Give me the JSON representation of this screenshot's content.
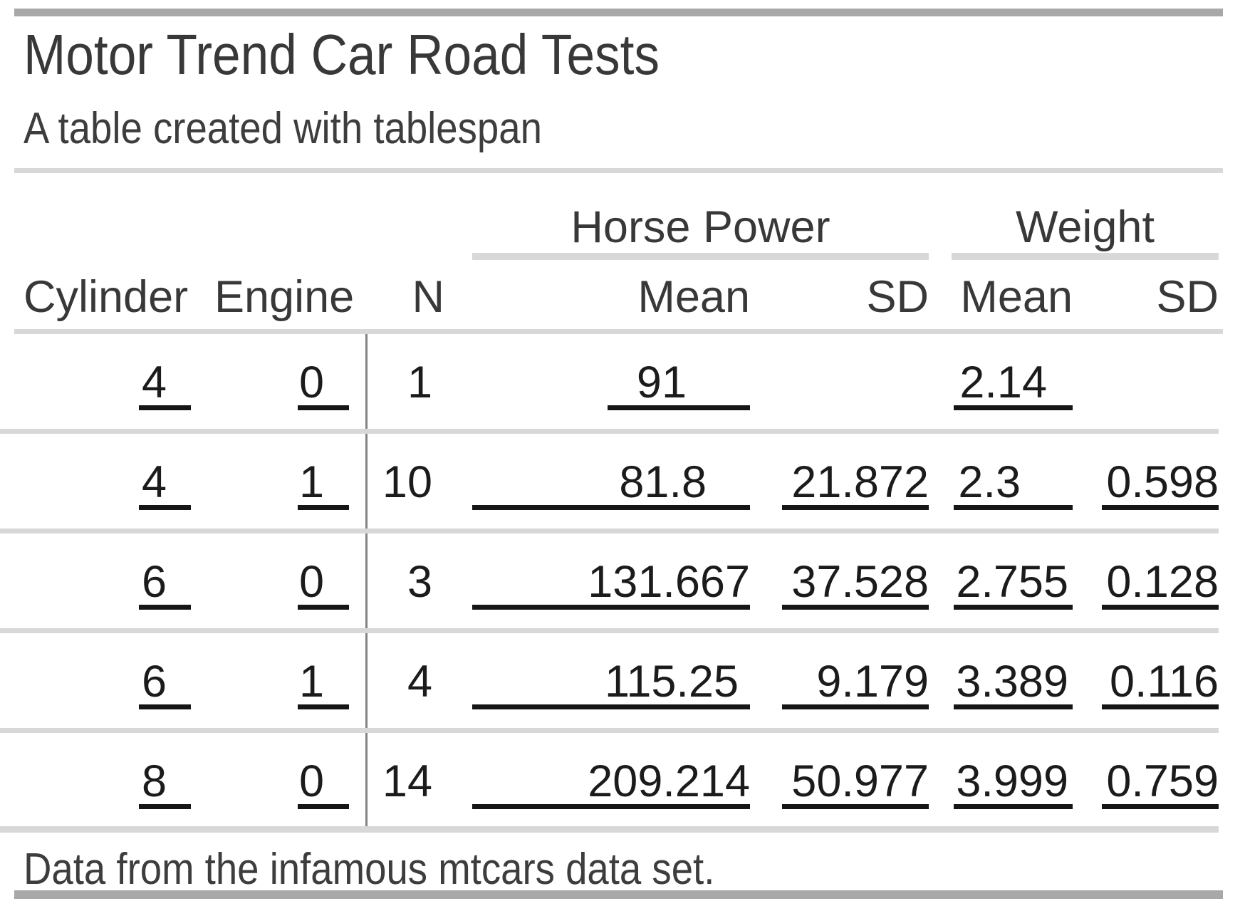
{
  "title": "Motor Trend Car Road Tests",
  "subtitle": "A table created with tablespan",
  "footnote": "Data from the infamous mtcars data set.",
  "spanners": [
    {
      "label": "Horse Power"
    },
    {
      "label": "Weight"
    }
  ],
  "columns": [
    "Cylinder",
    "Engine",
    "N",
    "Mean",
    "SD",
    "Mean",
    "SD"
  ],
  "rows": [
    {
      "cylinder": "4",
      "engine": "0",
      "n": "1",
      "hp_mean": "91",
      "hp_sd": "",
      "wt_mean": "2.14",
      "wt_sd": ""
    },
    {
      "cylinder": "4",
      "engine": "1",
      "n": "10",
      "hp_mean": "81.8",
      "hp_sd": "21.872",
      "wt_mean": "2.3",
      "wt_sd": "0.598"
    },
    {
      "cylinder": "6",
      "engine": "0",
      "n": "3",
      "hp_mean": "131.667",
      "hp_sd": "37.528",
      "wt_mean": "2.755",
      "wt_sd": "0.128"
    },
    {
      "cylinder": "6",
      "engine": "1",
      "n": "4",
      "hp_mean": "115.25",
      "hp_sd": "9.179",
      "wt_mean": "3.389",
      "wt_sd": "0.116"
    },
    {
      "cylinder": "8",
      "engine": "0",
      "n": "14",
      "hp_mean": "209.214",
      "hp_sd": "50.977",
      "wt_mean": "3.999",
      "wt_sd": "0.759"
    }
  ],
  "style": {
    "bar_gray": "#a8a8a8",
    "rule_gray": "#d8d8d8",
    "underline_black": "#161616",
    "divider_gray": "#838383",
    "heading_text": "#383838",
    "number_text": "#1b1b1b"
  }
}
